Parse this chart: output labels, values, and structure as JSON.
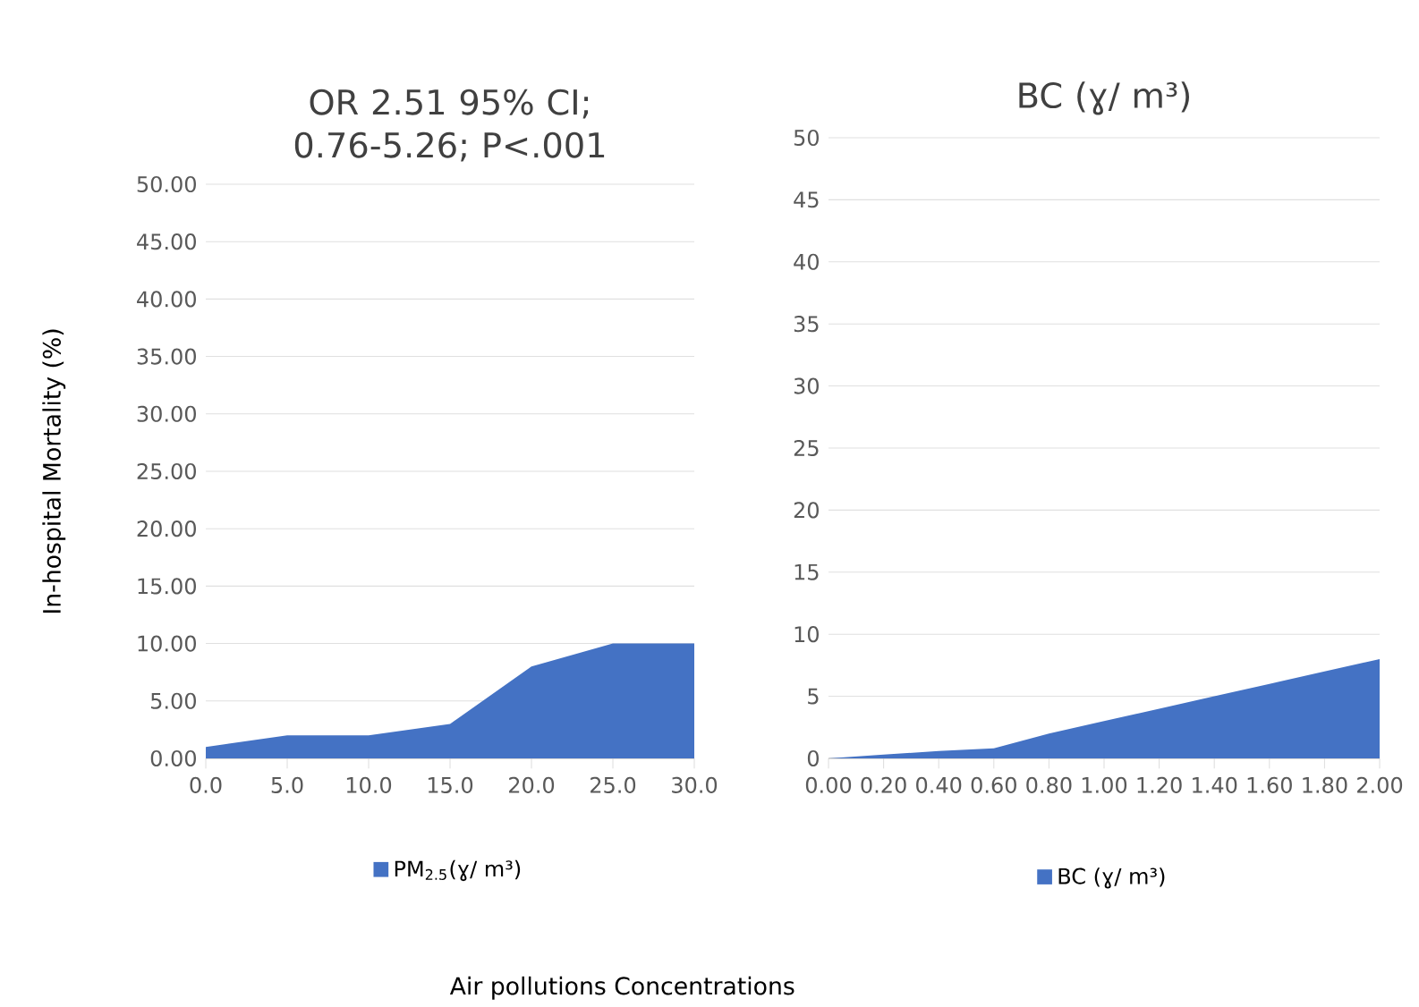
{
  "chart_data": [
    {
      "type": "area",
      "title": "OR 2.51 95% CI; 0.76-5.26; P<.001",
      "xlabel": "Air pollutions Concentrations",
      "ylabel": "In-hospital Mortality (%)",
      "x": [
        0,
        5,
        10,
        15,
        20,
        22.5,
        25,
        30
      ],
      "series": [
        {
          "name": "PM$_{2.5}$(ɣ/ m³)",
          "color": "#4472c4",
          "values": [
            1,
            2,
            2,
            3,
            8,
            9,
            10,
            10
          ]
        }
      ],
      "xlim": [
        0,
        30
      ],
      "ylim": [
        0,
        50
      ],
      "xticks": [
        {
          "value": 0,
          "label": "0.0"
        },
        {
          "value": 5,
          "label": "5.0"
        },
        {
          "value": 10,
          "label": "10.0"
        },
        {
          "value": 15,
          "label": "15.0"
        },
        {
          "value": 20,
          "label": "20.0"
        },
        {
          "value": 25,
          "label": "25.0"
        },
        {
          "value": 30,
          "label": "30.0"
        }
      ],
      "yticks": [
        {
          "value": 0,
          "label": "0.00"
        },
        {
          "value": 5,
          "label": "5.00"
        },
        {
          "value": 10,
          "label": "10.00"
        },
        {
          "value": 15,
          "label": "15.00"
        },
        {
          "value": 20,
          "label": "20.00"
        },
        {
          "value": 25,
          "label": "25.00"
        },
        {
          "value": 30,
          "label": "30.00"
        },
        {
          "value": 35,
          "label": "35.00"
        },
        {
          "value": 40,
          "label": "40.00"
        },
        {
          "value": 45,
          "label": "45.00"
        },
        {
          "value": 50,
          "label": "50.00"
        }
      ],
      "grid": "y",
      "legend": "bottom"
    },
    {
      "type": "area",
      "title": "BC (ɣ/ m³)",
      "x": [
        0,
        0.2,
        0.4,
        0.6,
        0.8,
        1.0,
        1.2,
        1.4,
        1.6,
        1.8,
        2.0
      ],
      "series": [
        {
          "name": "BC (ɣ/ m³)",
          "color": "#4472c4",
          "values": [
            0,
            0.3,
            0.6,
            0.8,
            2,
            3,
            4,
            5,
            6,
            7,
            8
          ]
        }
      ],
      "xlim": [
        0,
        2
      ],
      "ylim": [
        0,
        50
      ],
      "xticks": [
        {
          "value": 0,
          "label": "0.00"
        },
        {
          "value": 0.2,
          "label": "0.20"
        },
        {
          "value": 0.4,
          "label": "0.40"
        },
        {
          "value": 0.6,
          "label": "0.60"
        },
        {
          "value": 0.8,
          "label": "0.80"
        },
        {
          "value": 1.0,
          "label": "1.00"
        },
        {
          "value": 1.2,
          "label": "1.20"
        },
        {
          "value": 1.4,
          "label": "1.40"
        },
        {
          "value": 1.6,
          "label": "1.60"
        },
        {
          "value": 1.8,
          "label": "1.80"
        },
        {
          "value": 2.0,
          "label": "2.00"
        }
      ],
      "yticks": [
        0,
        5,
        10,
        15,
        20,
        25,
        30,
        35,
        40,
        45,
        50
      ],
      "grid": "y",
      "legend": "bottom"
    }
  ]
}
